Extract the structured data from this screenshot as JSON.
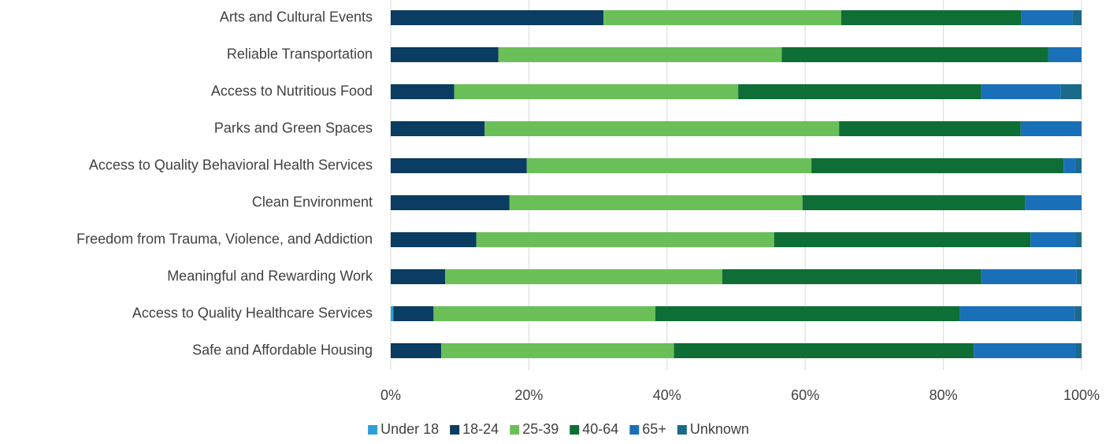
{
  "chart_data": {
    "type": "stacked-bar-horizontal",
    "categories": [
      "Arts and Cultural Events",
      "Reliable Transportation",
      "Access to Nutritious Food",
      "Parks and Green Spaces",
      "Access to Quality Behavioral Health Services",
      "Clean Environment",
      "Freedom from Trauma, Violence, and Addiction",
      "Meaningful and Rewarding Work",
      "Access to Quality Healthcare Services",
      "Safe and Affordable Housing"
    ],
    "series": [
      {
        "name": "Under 18",
        "color": "#2e9fd8",
        "values": [
          0,
          0,
          0,
          0,
          0,
          0,
          0,
          0,
          0.4,
          0
        ]
      },
      {
        "name": "18-24",
        "color": "#0b3c61",
        "values": [
          30.8,
          15.6,
          9.2,
          13.6,
          19.7,
          17.2,
          12.4,
          7.9,
          5.8,
          7.3
        ]
      },
      {
        "name": "25-39",
        "color": "#6abf59",
        "values": [
          34.4,
          41.0,
          41.1,
          51.3,
          41.2,
          42.4,
          43.1,
          40.1,
          32.1,
          33.7
        ]
      },
      {
        "name": "40-64",
        "color": "#0e6e36",
        "values": [
          26.1,
          38.6,
          35.2,
          26.3,
          36.5,
          32.2,
          37.1,
          37.5,
          44.1,
          43.4
        ]
      },
      {
        "name": "65+",
        "color": "#1a70b8",
        "values": [
          7.4,
          4.8,
          11.5,
          8.8,
          1.7,
          8.2,
          6.6,
          13.8,
          16.6,
          14.8
        ]
      },
      {
        "name": "Unknown",
        "color": "#1b6a8a",
        "values": [
          1.3,
          0,
          3.0,
          0,
          0.9,
          0,
          0.8,
          0.7,
          1.0,
          0.8
        ]
      }
    ],
    "xlim": [
      0,
      100
    ],
    "xticks": [
      {
        "value": 0,
        "label": "0%"
      },
      {
        "value": 20,
        "label": "20%"
      },
      {
        "value": 40,
        "label": "40%"
      },
      {
        "value": 60,
        "label": "60%"
      },
      {
        "value": 80,
        "label": "80%"
      },
      {
        "value": 100,
        "label": "100%"
      }
    ],
    "grid": true,
    "legend": "bottom"
  }
}
